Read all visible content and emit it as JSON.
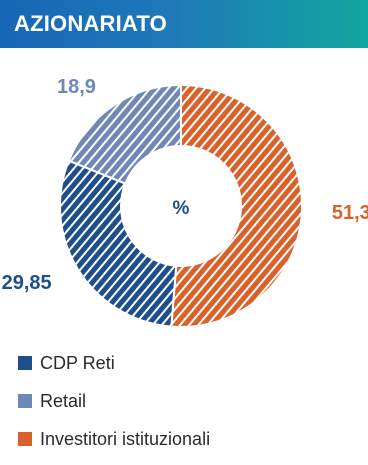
{
  "header": {
    "title": "AZIONARIATO"
  },
  "chart_data": {
    "type": "pie",
    "variant": "donut",
    "center_label": "%",
    "categories": [
      "Investitori istituzionali",
      "CDP Reti",
      "Retail"
    ],
    "values": [
      51.3,
      29.85,
      18.9
    ],
    "value_labels": [
      "51,3",
      "29,85",
      "18,9"
    ],
    "colors": [
      "#d9622b",
      "#1f4e8c",
      "#6f88b7"
    ],
    "fill_pattern": "diagonal-hatch",
    "legend_position": "bottom-left"
  },
  "legend": {
    "items": [
      {
        "label": "CDP Reti",
        "color": "#1f4e8c"
      },
      {
        "label": "Retail",
        "color": "#6f88b7"
      },
      {
        "label": "Investitori istituzionali",
        "color": "#d9622b"
      }
    ]
  }
}
